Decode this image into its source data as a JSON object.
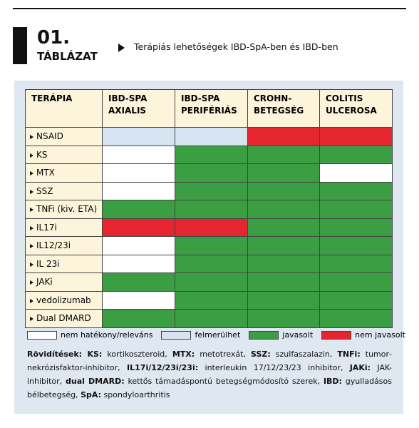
{
  "header": {
    "number": "01.",
    "label": "TÁBLÁZAT",
    "title": "Terápiás lehetőségek IBD-SpA-ben és IBD-ben"
  },
  "table": {
    "columns": [
      "TERÁPIA",
      "IBD-SPA\nAXIALIS",
      "IBD-SPA\nPERIFÉRIÁS",
      "CROHN-\nBETEGSÉG",
      "COLITIS\nULCEROSA"
    ],
    "rows": [
      {
        "label": "NSAID",
        "cells": [
          "#d6e4f2",
          "#d6e4f2",
          "#e52530",
          "#e52530"
        ]
      },
      {
        "label": "KS",
        "cells": [
          "#ffffff",
          "#3c9e43",
          "#3c9e43",
          "#3c9e43"
        ]
      },
      {
        "label": "MTX",
        "cells": [
          "#ffffff",
          "#3c9e43",
          "#3c9e43",
          "#ffffff"
        ]
      },
      {
        "label": "SSZ",
        "cells": [
          "#ffffff",
          "#3c9e43",
          "#3c9e43",
          "#3c9e43"
        ]
      },
      {
        "label": "TNFi (kiv. ETA)",
        "cells": [
          "#3c9e43",
          "#3c9e43",
          "#3c9e43",
          "#3c9e43"
        ]
      },
      {
        "label": "IL17i",
        "cells": [
          "#e52530",
          "#e52530",
          "#3c9e43",
          "#3c9e43"
        ]
      },
      {
        "label": "IL12/23i",
        "cells": [
          "#ffffff",
          "#3c9e43",
          "#3c9e43",
          "#3c9e43"
        ]
      },
      {
        "label": "IL 23i",
        "cells": [
          "#ffffff",
          "#3c9e43",
          "#3c9e43",
          "#3c9e43"
        ]
      },
      {
        "label": "JAKi",
        "cells": [
          "#3c9e43",
          "#3c9e43",
          "#3c9e43",
          "#3c9e43"
        ]
      },
      {
        "label": "vedolizumab",
        "cells": [
          "#ffffff",
          "#3c9e43",
          "#3c9e43",
          "#3c9e43"
        ]
      },
      {
        "label": "Dual DMARD",
        "cells": [
          "#3c9e43",
          "#3c9e43",
          "#3c9e43",
          "#3c9e43"
        ]
      }
    ]
  },
  "legend": [
    {
      "label": "nem hatékony/releváns",
      "color": "#ffffff"
    },
    {
      "label": "felmerülhet",
      "color": "#d6e4f2"
    },
    {
      "label": "javasolt",
      "color": "#3c9e43"
    },
    {
      "label": "nem javasolt",
      "color": "#e52530"
    }
  ],
  "abbreviations": [
    {
      "text": "Rövidítések: ",
      "bold": true
    },
    {
      "text": "KS:",
      "bold": true
    },
    {
      "text": " kortikoszteroid, ",
      "bold": false
    },
    {
      "text": "MTX:",
      "bold": true
    },
    {
      "text": " metotrexát, ",
      "bold": false
    },
    {
      "text": "SSZ:",
      "bold": true
    },
    {
      "text": " szulfaszalazin, ",
      "bold": false
    },
    {
      "text": "TNFi:",
      "bold": true
    },
    {
      "text": " tumor­nekrózisfaktor-inhibitor, ",
      "bold": false
    },
    {
      "text": "IL17i/12/23i/23i:",
      "bold": true
    },
    {
      "text": " interleukin 17/12/23/23 inhibitor, ",
      "bold": false
    },
    {
      "text": "JAKi:",
      "bold": true
    },
    {
      "text": " JAK-inhibitor, ",
      "bold": false
    },
    {
      "text": "dual DMARD:",
      "bold": true
    },
    {
      "text": " kettős támadáspontú betegségmódosító szerek, ",
      "bold": false
    },
    {
      "text": "IBD:",
      "bold": true
    },
    {
      "text": " gyulladásos bélbetegség, ",
      "bold": false
    },
    {
      "text": "SpA:",
      "bold": true
    },
    {
      "text": " spondyloarthritis",
      "bold": false
    }
  ]
}
